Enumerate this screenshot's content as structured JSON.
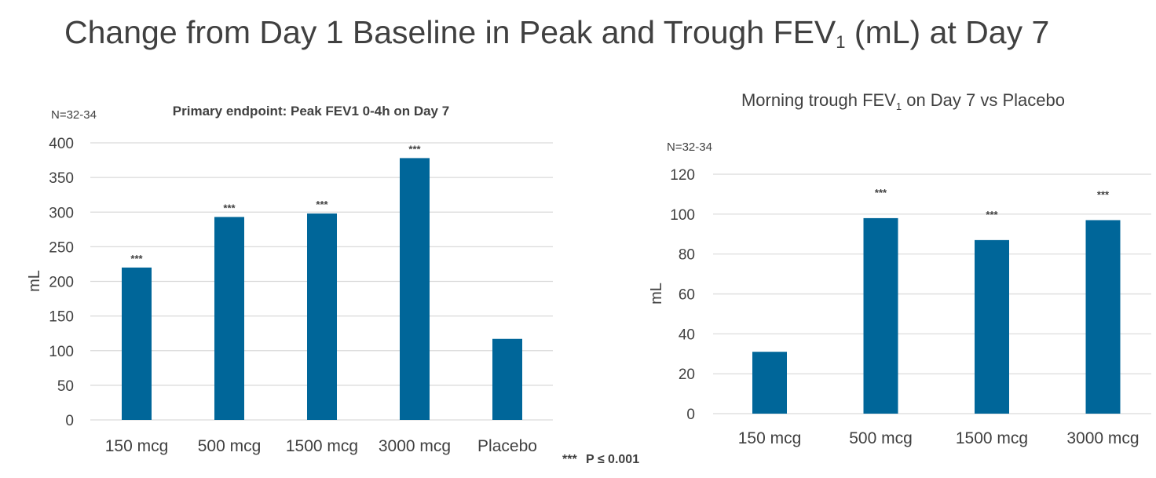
{
  "page": {
    "title": "Change from Day 1 Baseline in Peak and Trough FEV",
    "title_sub": "1",
    "title_suffix": " (mL) at Day 7",
    "footnote_stars": "***",
    "footnote_text": "P ≤ 0.001"
  },
  "colors": {
    "bar": "#006699",
    "grid": "#d9d9d9",
    "text": "#404040"
  },
  "chart_data": [
    {
      "type": "bar",
      "title": "Primary endpoint: Peak FEV1 0-4h on Day 7",
      "n_label": "N=32-34",
      "ylabel": "mL",
      "xlabel": "",
      "ylim": [
        0,
        400
      ],
      "yticks": [
        0,
        50,
        100,
        150,
        200,
        250,
        300,
        350,
        400
      ],
      "categories": [
        "150 mcg",
        "500 mcg",
        "1500 mcg",
        "3000 mcg",
        "Placebo"
      ],
      "values": [
        220,
        293,
        298,
        378,
        117
      ],
      "significance": [
        "***",
        "***",
        "***",
        "***",
        ""
      ],
      "grid": true
    },
    {
      "type": "bar",
      "title": "Morning trough FEV",
      "title_sub": "1",
      "title_suffix": " on Day 7 vs Placebo",
      "n_label": "N=32-34",
      "ylabel": "mL",
      "xlabel": "",
      "ylim": [
        0,
        120
      ],
      "yticks": [
        0,
        20,
        40,
        60,
        80,
        100,
        120
      ],
      "categories": [
        "150 mcg",
        "500 mcg",
        "1500 mcg",
        "3000 mcg"
      ],
      "values": [
        31,
        98,
        87,
        97
      ],
      "significance": [
        "",
        "***",
        "***",
        "***"
      ],
      "grid": true
    }
  ]
}
